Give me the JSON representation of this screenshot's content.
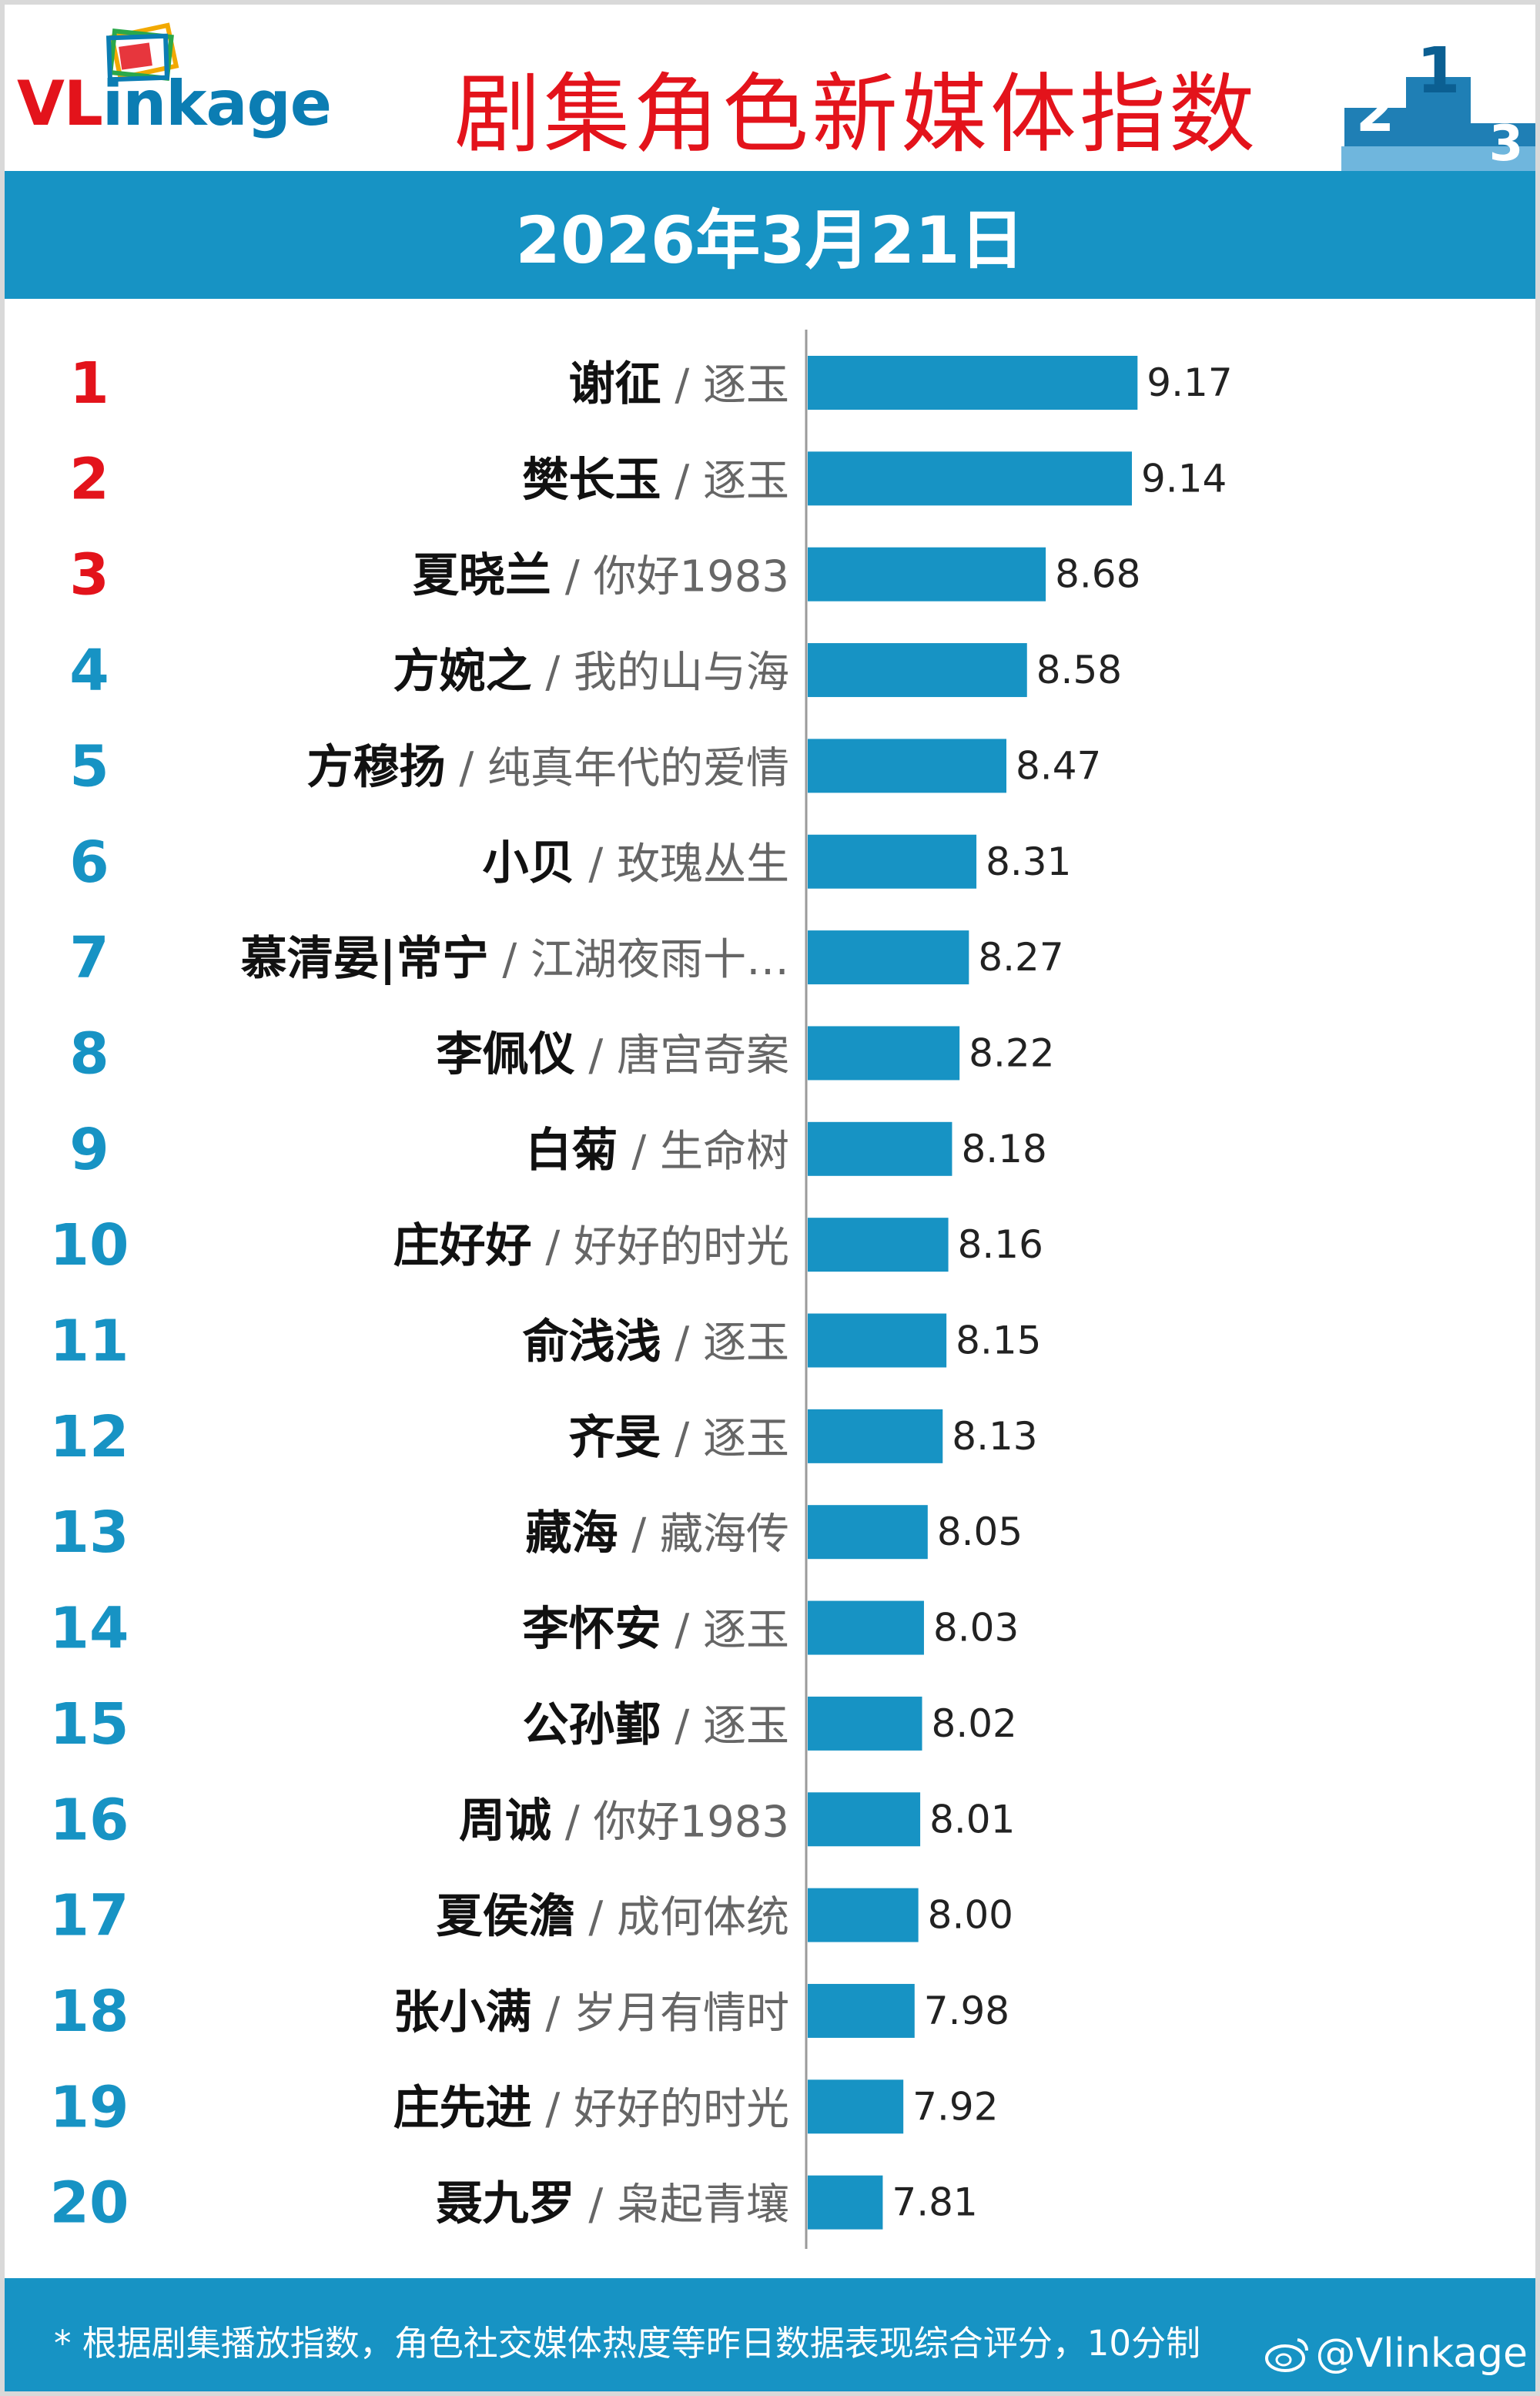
{
  "brand": {
    "logo_text_red": "VL",
    "logo_text_blue": "inkage"
  },
  "title": "剧集角色新媒体指数",
  "date": "2026年3月21日",
  "footnote": "* 根据剧集播放指数，角色社交媒体热度等昨日数据表现综合评分，10分制",
  "watermark": "@Vlinkage",
  "colors": {
    "bar": "#1793c4",
    "top3_rank": "#e3131b",
    "rank": "#1793c4",
    "title": "#e3131b",
    "banner": "#1793c4"
  },
  "icons": {
    "logo": "picture-frames-icon",
    "podium": "podium-icon",
    "weibo": "weibo-icon"
  },
  "chart_data": {
    "type": "bar",
    "orientation": "horizontal",
    "title": "剧集角色新媒体指数",
    "xlim": [
      0,
      10
    ],
    "grid": false,
    "rows": [
      {
        "rank": "1",
        "character": "谢征",
        "drama": "逐玉",
        "value": 9.17
      },
      {
        "rank": "2",
        "character": "樊长玉",
        "drama": "逐玉",
        "value": 9.14
      },
      {
        "rank": "3",
        "character": "夏晓兰",
        "drama": "你好1983",
        "value": 8.68
      },
      {
        "rank": "4",
        "character": "方婉之",
        "drama": "我的山与海",
        "value": 8.58
      },
      {
        "rank": "5",
        "character": "方穆扬",
        "drama": "纯真年代的爱情",
        "value": 8.47
      },
      {
        "rank": "6",
        "character": "小贝",
        "drama": "玫瑰丛生",
        "value": 8.31
      },
      {
        "rank": "7",
        "character": "慕清晏|常宁",
        "drama": "江湖夜雨十…",
        "value": 8.27
      },
      {
        "rank": "8",
        "character": "李佩仪",
        "drama": "唐宫奇案",
        "value": 8.22
      },
      {
        "rank": "9",
        "character": "白菊",
        "drama": "生命树",
        "value": 8.18
      },
      {
        "rank": "10",
        "character": "庄好好",
        "drama": "好好的时光",
        "value": 8.16
      },
      {
        "rank": "11",
        "character": "俞浅浅",
        "drama": "逐玉",
        "value": 8.15
      },
      {
        "rank": "12",
        "character": "齐旻",
        "drama": "逐玉",
        "value": 8.13
      },
      {
        "rank": "13",
        "character": "藏海",
        "drama": "藏海传",
        "value": 8.05
      },
      {
        "rank": "14",
        "character": "李怀安",
        "drama": "逐玉",
        "value": 8.03
      },
      {
        "rank": "15",
        "character": "公孙鄞",
        "drama": "逐玉",
        "value": 8.02
      },
      {
        "rank": "16",
        "character": "周诚",
        "drama": "你好1983",
        "value": 8.01
      },
      {
        "rank": "17",
        "character": "夏侯澹",
        "drama": "成何体统",
        "value": 8.0
      },
      {
        "rank": "18",
        "character": "张小满",
        "drama": "岁月有情时",
        "value": 7.98
      },
      {
        "rank": "19",
        "character": "庄先进",
        "drama": "好好的时光",
        "value": 7.92
      },
      {
        "rank": "20",
        "character": "聂九罗",
        "drama": "枭起青壤",
        "value": 7.81
      }
    ]
  }
}
